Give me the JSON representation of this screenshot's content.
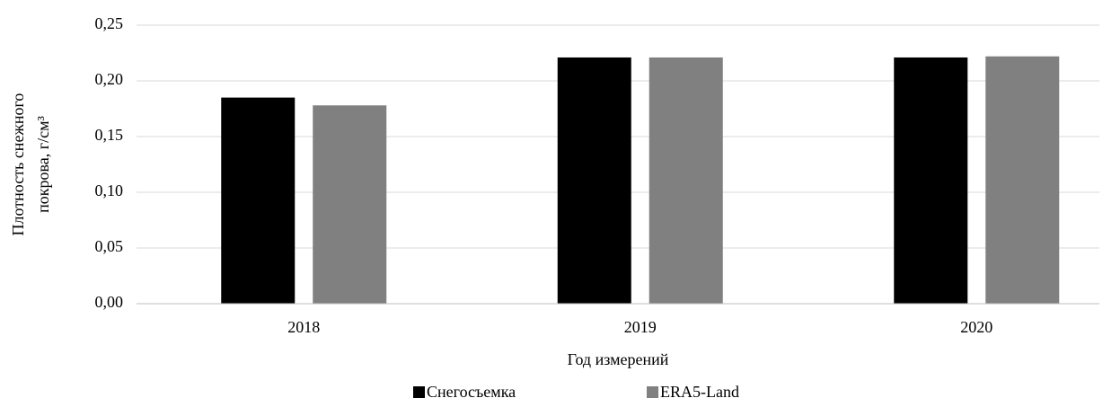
{
  "chart_data": {
    "type": "bar",
    "y_label_lines": [
      "Плотность снежного",
      "покрова, г/см³"
    ],
    "x_label": "Год измерений",
    "categories": [
      "2018",
      "2019",
      "2020"
    ],
    "series": [
      {
        "name": "Снегосъемка",
        "color": "#000000",
        "values": [
          0.185,
          0.221,
          0.221
        ]
      },
      {
        "name": "ERA5-Land",
        "color": "#808080",
        "values": [
          0.178,
          0.221,
          0.222
        ]
      }
    ],
    "ylim": [
      0,
      0.25
    ],
    "yticks": [
      {
        "value": 0,
        "label": "0,00"
      },
      {
        "value": 0.05,
        "label": "0,05"
      },
      {
        "value": 0.1,
        "label": "0,10"
      },
      {
        "value": 0.15,
        "label": "0,15"
      },
      {
        "value": 0.2,
        "label": "0,20"
      },
      {
        "value": 0.25,
        "label": "0,25"
      }
    ],
    "grid": true,
    "legend": "bottom"
  }
}
